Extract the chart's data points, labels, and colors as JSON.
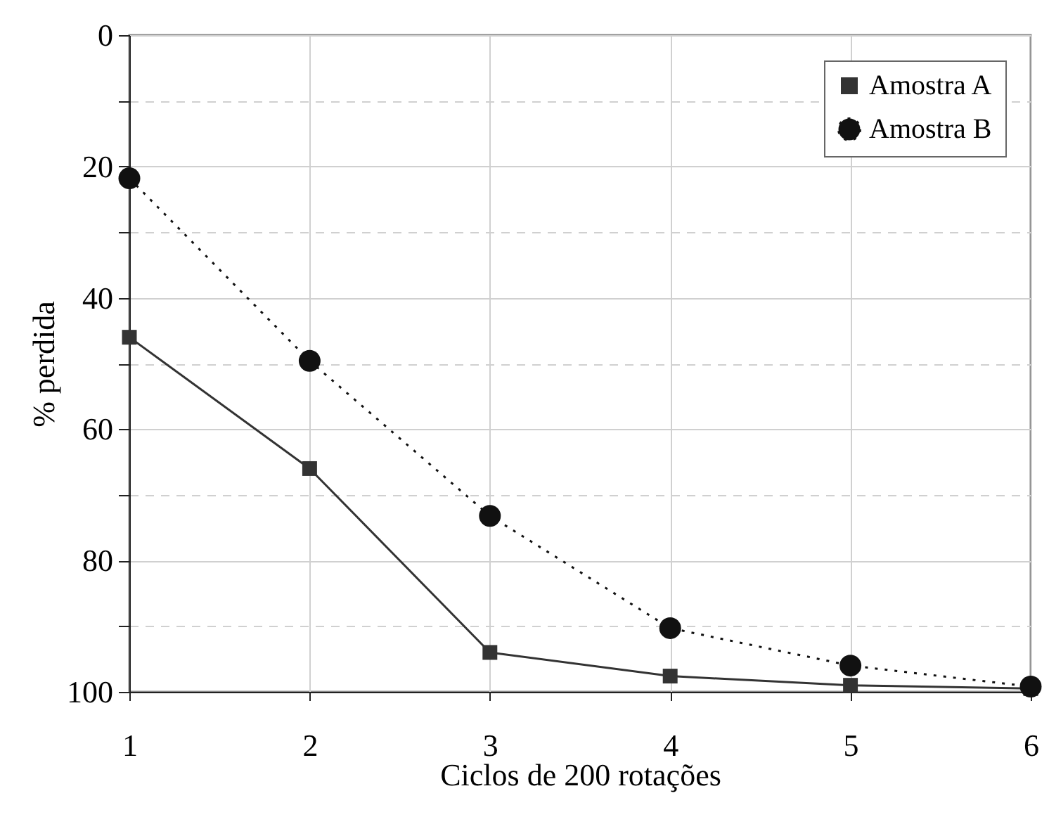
{
  "chart_data": {
    "type": "line",
    "xlabel": "Ciclos de 200 rotações",
    "ylabel": "% perdida",
    "x": [
      1,
      2,
      3,
      4,
      5,
      6
    ],
    "series": [
      {
        "name": "Amostra A",
        "color": "#333333",
        "marker": "square",
        "line_style": "solid",
        "values": [
          46,
          66,
          94,
          97.6,
          99,
          99.5
        ]
      },
      {
        "name": "Amostra B",
        "color": "#111111",
        "marker": "circle",
        "line_style": "dotted",
        "values": [
          21.8,
          49.6,
          73.2,
          90.3,
          96,
          99.2
        ]
      }
    ],
    "xlim": [
      1,
      6
    ],
    "xticks": [
      1,
      2,
      3,
      4,
      5,
      6
    ],
    "ylim": [
      100,
      0
    ],
    "yticks": [
      0,
      {
        "value": 10,
        "label": null
      },
      20,
      {
        "value": 30,
        "label": null
      },
      40,
      {
        "value": 50,
        "label": null
      },
      60,
      {
        "value": 70,
        "label": null
      },
      80,
      {
        "value": 90,
        "label": null
      },
      100
    ],
    "grid": true,
    "legend": "top right"
  }
}
